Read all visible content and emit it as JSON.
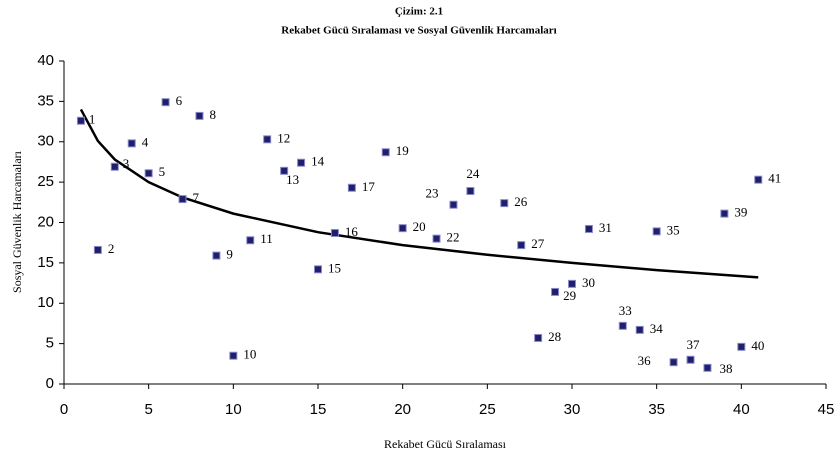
{
  "chart_data": {
    "type": "scatter",
    "title": "Çizim:  2.1",
    "subtitle": "Rekabet Gücü Sıralaması ve Sosyal Güvenlik Harcamaları",
    "x_label": "Rekabet Gücü Sıralaması",
    "y_label": "Sosyal Güvenlik Harcamaları",
    "x": [
      1,
      2,
      3,
      4,
      5,
      6,
      7,
      8,
      9,
      10,
      11,
      12,
      13,
      14,
      15,
      16,
      17,
      19,
      20,
      22,
      23,
      24,
      26,
      27,
      28,
      29,
      30,
      31,
      33,
      34,
      35,
      36,
      37,
      38,
      39,
      40,
      41
    ],
    "values": [
      32.6,
      16.6,
      26.9,
      29.8,
      26.1,
      34.9,
      22.9,
      33.2,
      15.9,
      3.5,
      17.8,
      30.3,
      26.4,
      27.4,
      14.2,
      18.7,
      24.3,
      28.7,
      19.3,
      18.0,
      22.2,
      23.9,
      22.4,
      17.2,
      5.7,
      11.4,
      12.4,
      19.2,
      7.2,
      6.7,
      18.9,
      2.7,
      3.0,
      2.0,
      21.1,
      4.6,
      25.3
    ],
    "color": "#1f1f6e",
    "trendline": {
      "x": [
        1,
        2,
        3,
        5,
        7,
        10,
        15,
        20,
        25,
        30,
        35,
        41
      ],
      "values": [
        34,
        30.1,
        27.8,
        25.0,
        23.1,
        21.1,
        18.8,
        17.2,
        16.0,
        15.0,
        14.1,
        13.2
      ],
      "color": "#000000"
    },
    "xlim": [
      0,
      45
    ],
    "xticks": [
      0,
      5,
      10,
      15,
      20,
      25,
      30,
      35,
      40,
      45
    ],
    "ylim": [
      0,
      40
    ],
    "yticks": [
      0,
      5,
      10,
      15,
      20,
      25,
      30,
      35,
      40
    ]
  }
}
